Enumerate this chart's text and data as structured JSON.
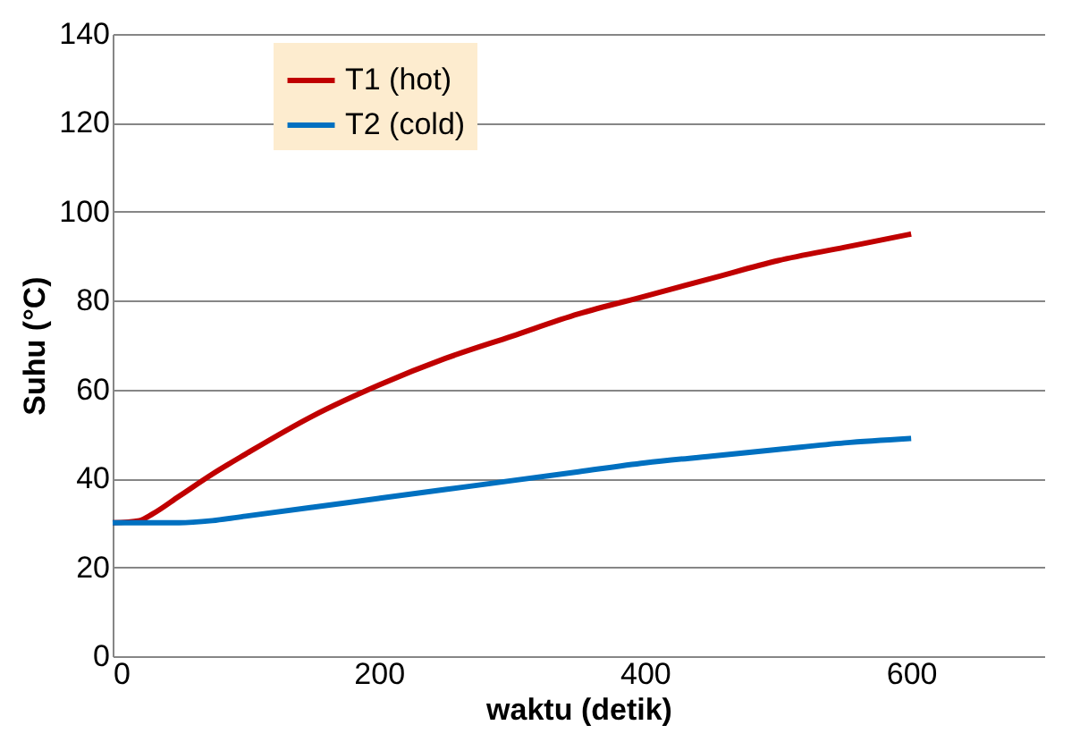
{
  "chart_data": {
    "type": "line",
    "xlabel": "waktu (detik)",
    "ylabel": "Suhu (°C)",
    "xlim": [
      0,
      700
    ],
    "xticks": [
      0,
      200,
      400,
      600
    ],
    "ylim": [
      0,
      140
    ],
    "yticks": [
      0,
      20,
      40,
      60,
      80,
      100,
      120,
      140
    ],
    "grid": "y",
    "legend": "top",
    "marker": "none",
    "line_style": "solid",
    "series": [
      {
        "name": "T1 (hot)",
        "color": "#c00000",
        "x": [
          0,
          20,
          30,
          50,
          75,
          100,
          150,
          200,
          250,
          300,
          350,
          400,
          450,
          500,
          550,
          600
        ],
        "values": [
          30,
          30.5,
          32,
          36,
          41,
          45.5,
          54,
          61,
          67,
          72,
          77,
          81,
          85,
          89,
          92,
          95
        ]
      },
      {
        "name": "T2 (cold)",
        "color": "#0070c0",
        "x": [
          0,
          50,
          75,
          100,
          150,
          200,
          250,
          300,
          350,
          400,
          450,
          500,
          550,
          600
        ],
        "values": [
          30,
          30,
          30.5,
          31.5,
          33.5,
          35.5,
          37.5,
          39.5,
          41.5,
          43.5,
          45,
          46.5,
          48,
          49
        ]
      }
    ]
  }
}
